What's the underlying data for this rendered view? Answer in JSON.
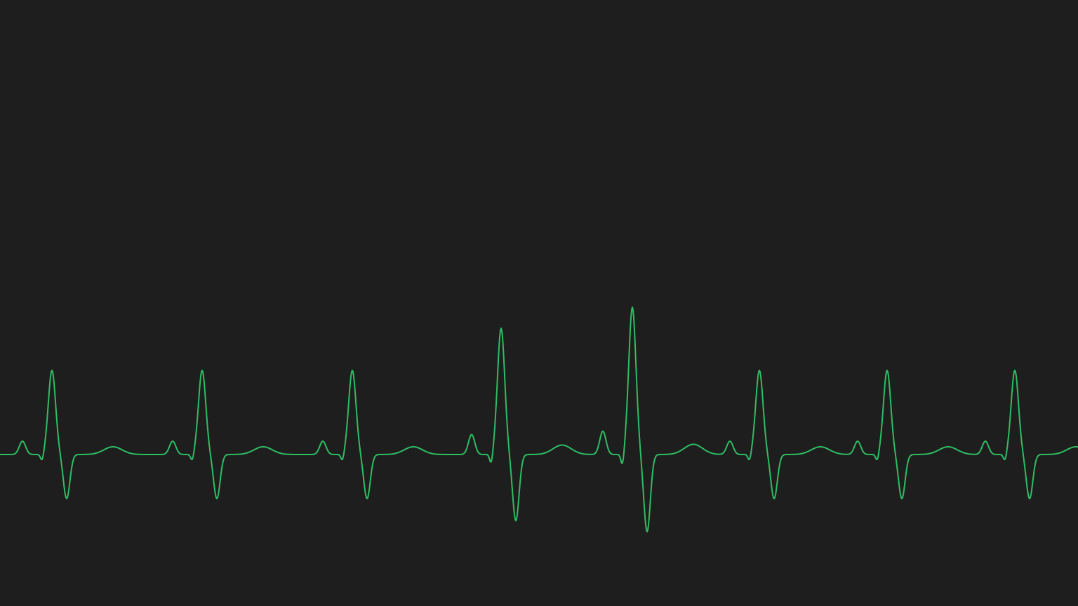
{
  "colors": {
    "background": "#1e1e1e",
    "trace": "#2ebd63"
  },
  "waveform": {
    "type": "ecg-trace",
    "beat_amplitudes_relative": [
      1.0,
      1.0,
      1.0,
      1.5,
      1.75,
      1.0,
      1.0,
      1.0
    ]
  }
}
